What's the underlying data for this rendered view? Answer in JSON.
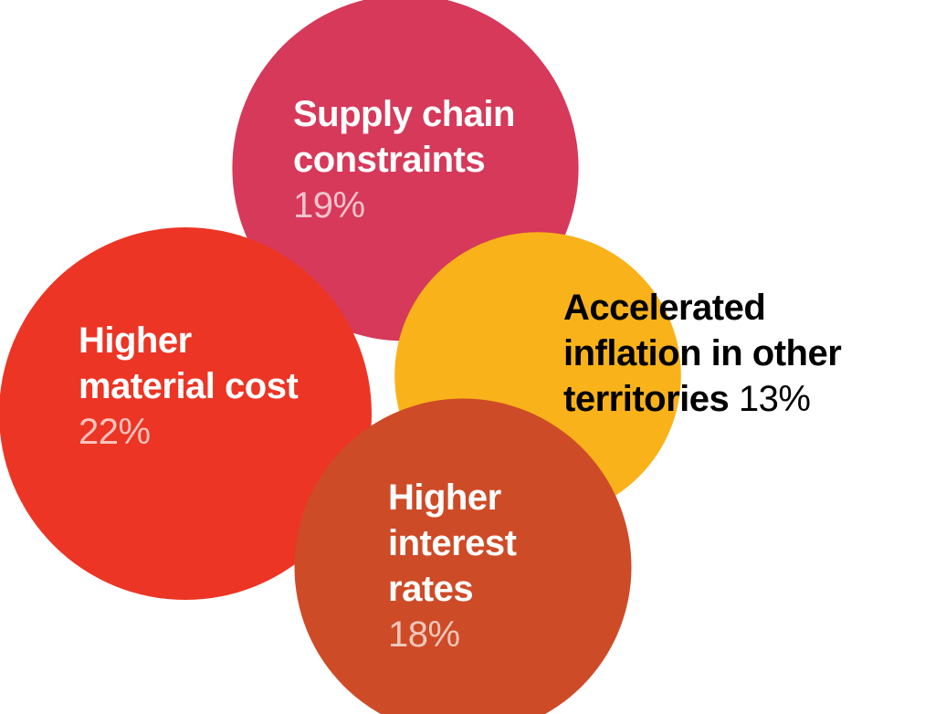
{
  "chart_data": {
    "type": "bubble",
    "items": [
      {
        "key": "supply",
        "name_lines": [
          "Supply chain",
          "constraints"
        ],
        "value": 19,
        "value_label": "19%",
        "color": "#D6395A",
        "text_color": "#ffffff",
        "value_color": "#F2C2CC"
      },
      {
        "key": "inflation",
        "name_lines": [
          "Accelerated",
          "inflation in other",
          "territories"
        ],
        "value": 13,
        "value_label": "13%",
        "color": "#F9B219",
        "text_color": "#000000",
        "value_color": "#000000"
      },
      {
        "key": "material",
        "name_lines": [
          "Higher",
          "material cost"
        ],
        "value": 22,
        "value_label": "22%",
        "color": "#EC3525",
        "text_color": "#ffffff",
        "value_color": "#F8C3BD"
      },
      {
        "key": "interest",
        "name_lines": [
          "Higher",
          "interest",
          "rates"
        ],
        "value": 18,
        "value_label": "18%",
        "color": "#CE4B27",
        "text_color": "#ffffff",
        "value_color": "#F1C7BA"
      }
    ]
  }
}
